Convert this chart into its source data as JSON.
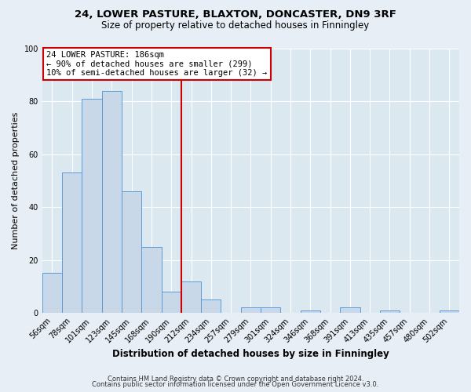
{
  "title": "24, LOWER PASTURE, BLAXTON, DONCASTER, DN9 3RF",
  "subtitle": "Size of property relative to detached houses in Finningley",
  "xlabel": "Distribution of detached houses by size in Finningley",
  "ylabel": "Number of detached properties",
  "bar_labels": [
    "56sqm",
    "78sqm",
    "101sqm",
    "123sqm",
    "145sqm",
    "168sqm",
    "190sqm",
    "212sqm",
    "234sqm",
    "257sqm",
    "279sqm",
    "301sqm",
    "324sqm",
    "346sqm",
    "368sqm",
    "391sqm",
    "413sqm",
    "435sqm",
    "457sqm",
    "480sqm",
    "502sqm"
  ],
  "bar_values": [
    15,
    53,
    81,
    84,
    46,
    25,
    8,
    12,
    5,
    0,
    2,
    2,
    0,
    1,
    0,
    2,
    0,
    1,
    0,
    0,
    1
  ],
  "bar_color": "#c8d8e8",
  "bar_edge_color": "#5b9bd5",
  "ylim": [
    0,
    100
  ],
  "yticks": [
    0,
    20,
    40,
    60,
    80,
    100
  ],
  "reference_line_bin": 6,
  "reference_line_color": "#cc0000",
  "annotation_title": "24 LOWER PASTURE: 186sqm",
  "annotation_line1": "← 90% of detached houses are smaller (299)",
  "annotation_line2": "10% of semi-detached houses are larger (32) →",
  "annotation_box_color": "#cc0000",
  "bg_color": "#e8eef5",
  "plot_bg_color": "#dce8f0",
  "footer_line1": "Contains HM Land Registry data © Crown copyright and database right 2024.",
  "footer_line2": "Contains public sector information licensed under the Open Government Licence v3.0."
}
